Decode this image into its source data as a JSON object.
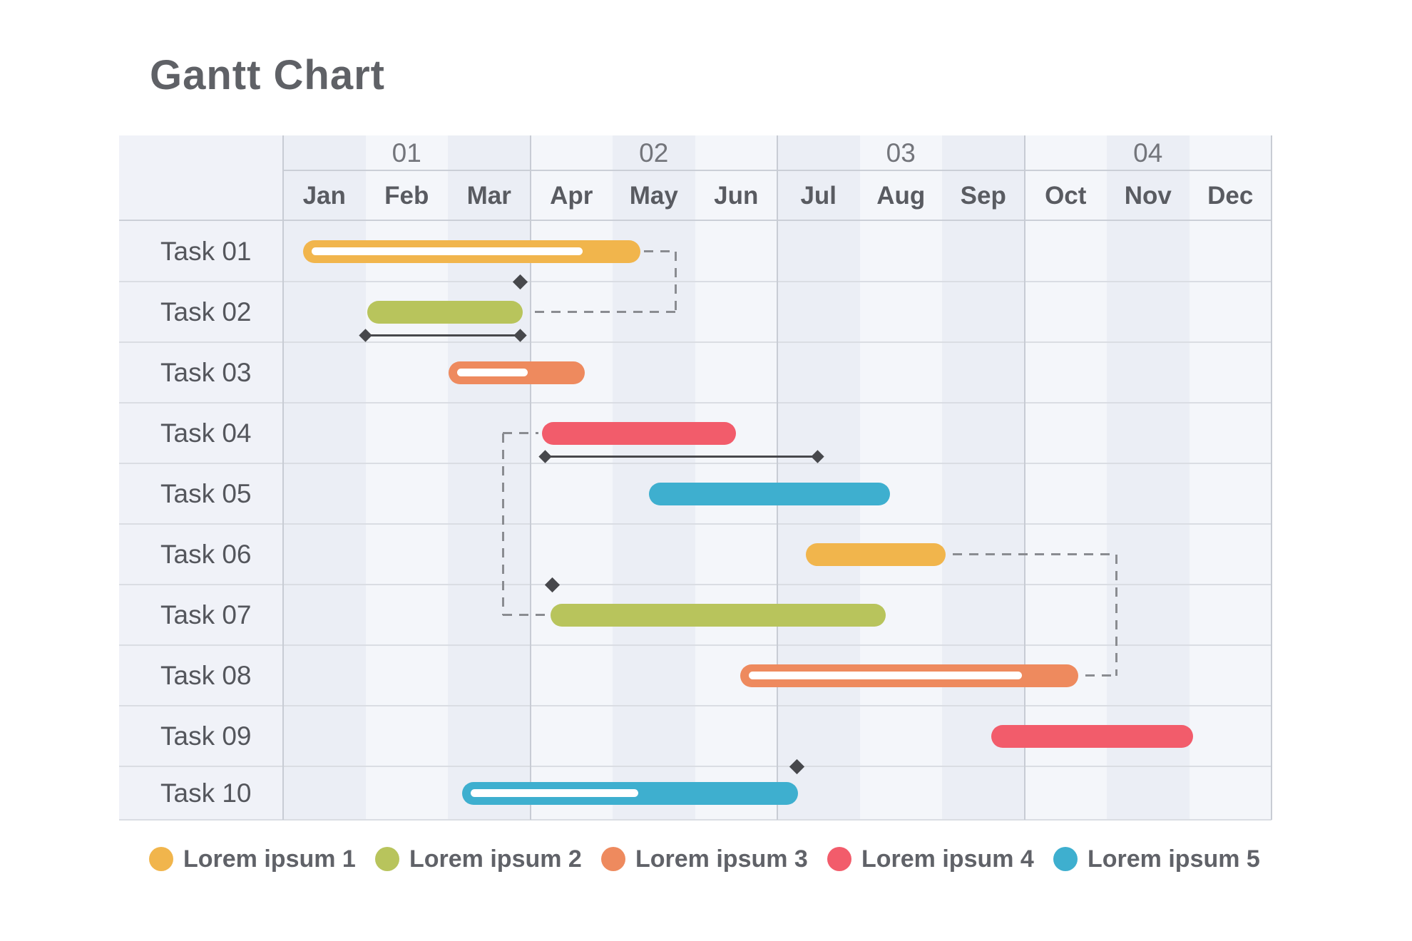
{
  "title": "Gantt Chart",
  "timeline": {
    "quarters": [
      "01",
      "02",
      "03",
      "04"
    ],
    "months": [
      "Jan",
      "Feb",
      "Mar",
      "Apr",
      "May",
      "Jun",
      "Jul",
      "Aug",
      "Sep",
      "Oct",
      "Nov",
      "Dec"
    ]
  },
  "chart_data": {
    "type": "gantt",
    "unit": "months, 0 = start of Jan",
    "tasks": [
      {
        "label": "Task 01",
        "series": "Lorem ipsum 1",
        "color": "#F1B54C",
        "start": 0.24,
        "end": 4.34,
        "progress_end": 3.64
      },
      {
        "label": "Task 02",
        "series": "Lorem ipsum 2",
        "color": "#B8C45C",
        "start": 1.02,
        "end": 2.91,
        "baseline": {
          "start": 1.0,
          "end": 2.88
        }
      },
      {
        "label": "Task 03",
        "series": "Lorem ipsum 3",
        "color": "#EE8A5E",
        "start": 2.01,
        "end": 3.66,
        "progress_end": 2.97
      },
      {
        "label": "Task 04",
        "series": "Lorem ipsum 4",
        "color": "#F25C6B",
        "start": 3.14,
        "end": 5.5,
        "baseline": {
          "start": 3.18,
          "end": 6.49
        }
      },
      {
        "label": "Task 05",
        "series": "Lorem ipsum 5",
        "color": "#3EAFCF",
        "start": 4.44,
        "end": 7.37
      },
      {
        "label": "Task 06",
        "series": "Lorem ipsum 1",
        "color": "#F1B54C",
        "start": 6.35,
        "end": 8.04
      },
      {
        "label": "Task 07",
        "series": "Lorem ipsum 2",
        "color": "#B8C45C",
        "start": 3.25,
        "end": 7.32
      },
      {
        "label": "Task 08",
        "series": "Lorem ipsum 3",
        "color": "#EE8A5E",
        "start": 5.55,
        "end": 9.65,
        "progress_end": 8.97
      },
      {
        "label": "Task 09",
        "series": "Lorem ipsum 4",
        "color": "#F25C6B",
        "start": 8.6,
        "end": 11.05
      },
      {
        "label": "Task 10",
        "series": "Lorem ipsum 5",
        "color": "#3EAFCF",
        "start": 2.17,
        "end": 6.25,
        "progress_end": 4.31
      }
    ],
    "milestones": [
      {
        "month": 2.88,
        "above_task_index": 1
      },
      {
        "month": 3.27,
        "above_task_index": 6
      },
      {
        "month": 6.24,
        "above_task_index": 9
      }
    ],
    "connectors": [
      {
        "from": "Task 01",
        "to": "Task 02",
        "points": [
          [
            4.38,
            0
          ],
          [
            4.77,
            0
          ],
          [
            4.77,
            1
          ],
          [
            3.06,
            1
          ]
        ]
      },
      {
        "from": "Task 04",
        "to": "Task 07",
        "points": [
          [
            3.1,
            3
          ],
          [
            2.67,
            3
          ],
          [
            2.67,
            6
          ],
          [
            3.2,
            6
          ]
        ]
      },
      {
        "from": "Task 06",
        "to": "Task 08",
        "points": [
          [
            8.13,
            5
          ],
          [
            10.12,
            5
          ],
          [
            10.12,
            7
          ],
          [
            9.74,
            7
          ]
        ]
      }
    ]
  },
  "legend": [
    {
      "label": "Lorem ipsum 1",
      "color": "#F1B54C"
    },
    {
      "label": "Lorem ipsum 2",
      "color": "#B8C45C"
    },
    {
      "label": "Lorem ipsum 3",
      "color": "#EE8A5E"
    },
    {
      "label": "Lorem ipsum 4",
      "color": "#F25C6B"
    },
    {
      "label": "Lorem ipsum 5",
      "color": "#3EAFCF"
    }
  ],
  "colors": {
    "background": "#FFFFFF",
    "label_column_bg": "#F0F2F8",
    "month_column_tint": "#EBEEF5",
    "month_column_light": "#F4F6FA",
    "grid_line": "#DADDE3",
    "header_line": "#CBCFD7",
    "quarter_line": "#C8CCD4",
    "connector": "#8A8C91",
    "milestone": "#47484C",
    "title_text": "#5F6166",
    "task_text": "#54565C",
    "month_text": "#595B61",
    "quarter_text": "#73757B",
    "legend_text": "#606268"
  }
}
